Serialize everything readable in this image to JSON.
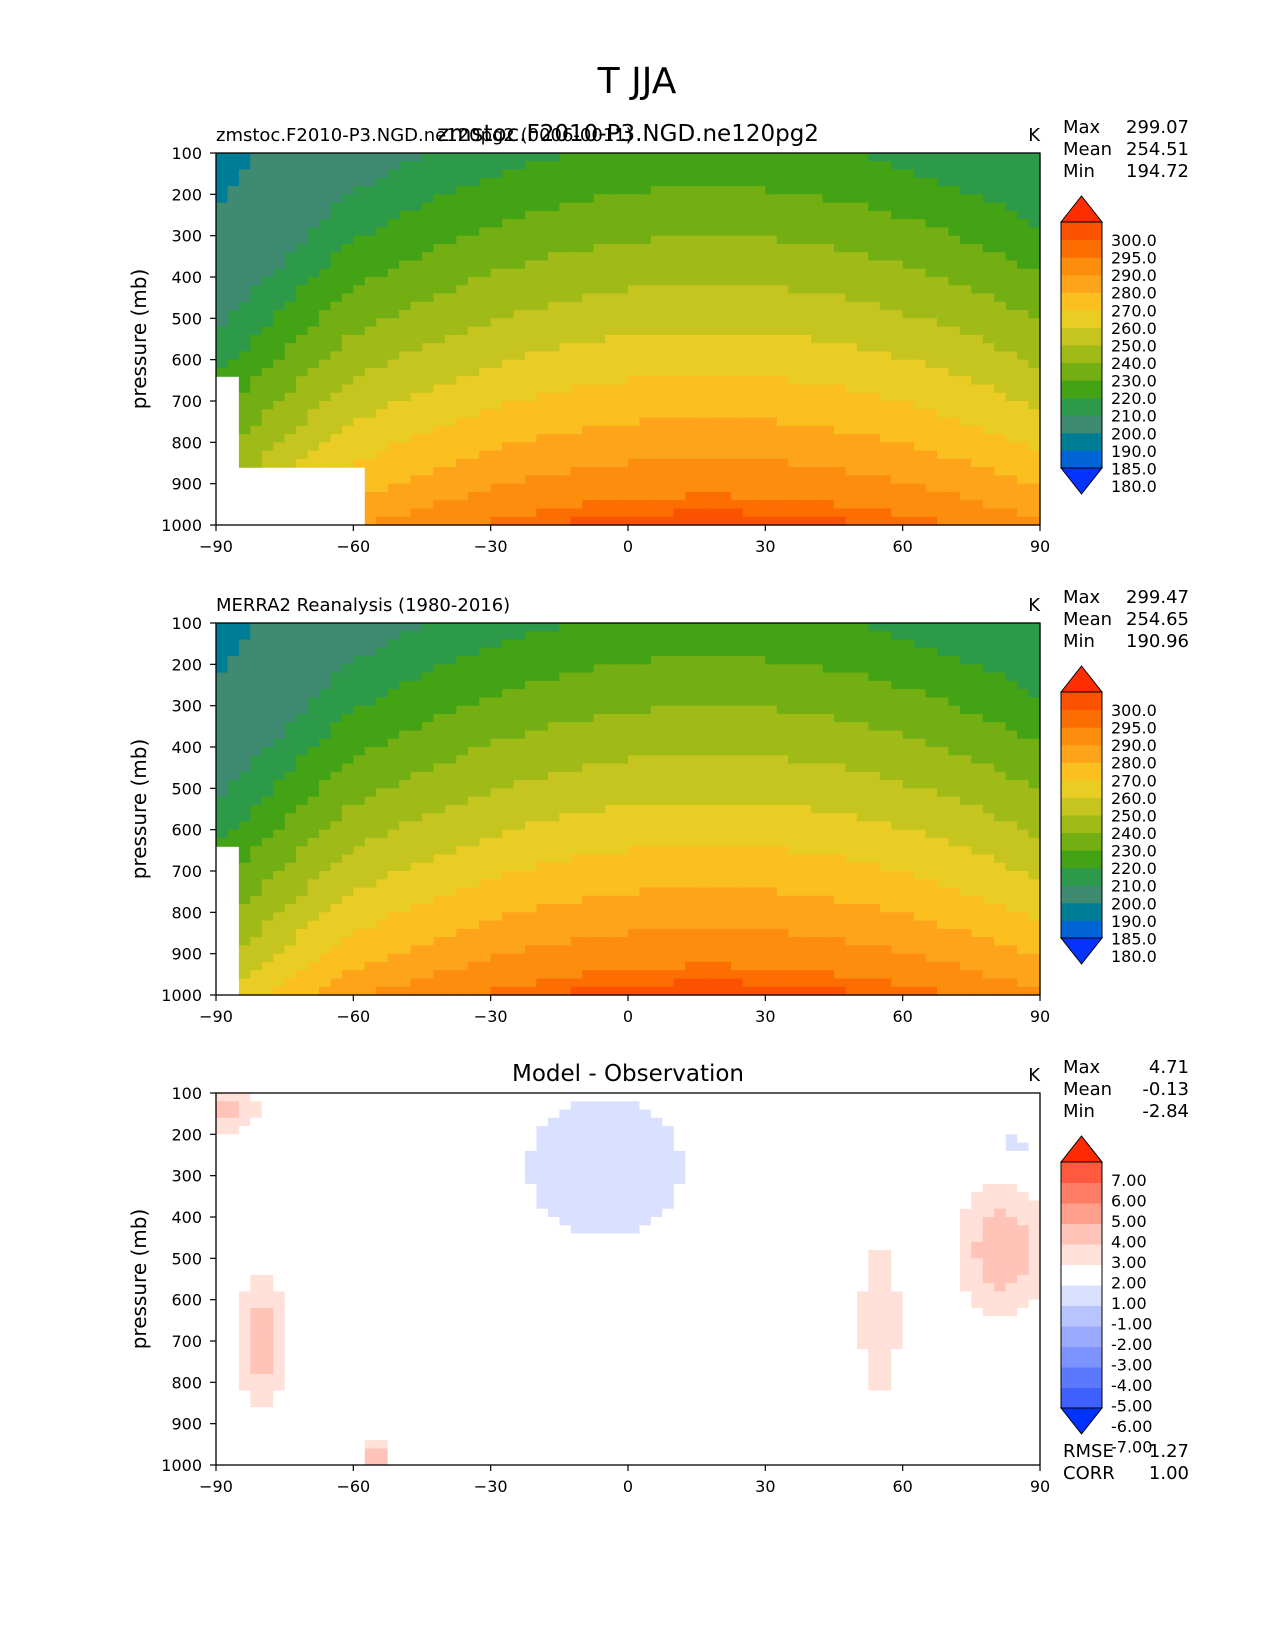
{
  "figure_title": "T JJA",
  "colors": {
    "temperature_levels": [
      "#0433ff",
      "#0064d6",
      "#007d96",
      "#3e8b72",
      "#2d9a4a",
      "#43a315",
      "#73ae12",
      "#a0bb18",
      "#c6c41e",
      "#e9cc24",
      "#fbbf20",
      "#fda41a",
      "#fc8d0d",
      "#fc6d02",
      "#fb5200",
      "#ff2d00"
    ],
    "difference_levels": [
      "#0032ff",
      "#3d60ff",
      "#5b79ff",
      "#7d93ff",
      "#9aaaff",
      "#b8c4ff",
      "#dae1ff",
      "#ffffff",
      "#ffe1da",
      "#ffc3b8",
      "#ff9f8c",
      "#ff7c66",
      "#ff5a3f",
      "#ff2a00"
    ]
  },
  "chart_data": [
    {
      "type": "heatmap",
      "panel_id": "model",
      "title": "zmstoc.F2010-P3.NGD.ne120pg2",
      "title_left": "zmstoc.F2010-P3.NGD.ne120pg2 (0006-0011)",
      "units": "K",
      "xlabel": "",
      "ylabel": "pressure (mb)",
      "xlim": [
        -90,
        90
      ],
      "ylim": [
        1000,
        100
      ],
      "xticks": [
        "−90",
        "−60",
        "−30",
        "0",
        "30",
        "60",
        "90"
      ],
      "yticks": [
        "100",
        "200",
        "300",
        "400",
        "500",
        "600",
        "700",
        "800",
        "900",
        "1000"
      ],
      "stats": [
        {
          "label": "Max",
          "value": "299.07"
        },
        {
          "label": "Mean",
          "value": "254.51"
        },
        {
          "label": "Min",
          "value": "194.72"
        }
      ],
      "colorbar_ticks": [
        "300.0",
        "295.0",
        "290.0",
        "280.0",
        "270.0",
        "260.0",
        "250.0",
        "240.0",
        "230.0",
        "220.0",
        "210.0",
        "200.0",
        "190.0",
        "185.0",
        "180.0"
      ]
    },
    {
      "type": "heatmap",
      "panel_id": "obs",
      "title": "",
      "title_left": "MERRA2 Reanalysis (1980-2016)",
      "units": "K",
      "xlabel": "",
      "ylabel": "pressure (mb)",
      "xlim": [
        -90,
        90
      ],
      "ylim": [
        1000,
        100
      ],
      "xticks": [
        "−90",
        "−60",
        "−30",
        "0",
        "30",
        "60",
        "90"
      ],
      "yticks": [
        "100",
        "200",
        "300",
        "400",
        "500",
        "600",
        "700",
        "800",
        "900",
        "1000"
      ],
      "stats": [
        {
          "label": "Max",
          "value": "299.47"
        },
        {
          "label": "Mean",
          "value": "254.65"
        },
        {
          "label": "Min",
          "value": "190.96"
        }
      ],
      "colorbar_ticks": [
        "300.0",
        "295.0",
        "290.0",
        "280.0",
        "270.0",
        "260.0",
        "250.0",
        "240.0",
        "230.0",
        "220.0",
        "210.0",
        "200.0",
        "190.0",
        "185.0",
        "180.0"
      ]
    },
    {
      "type": "heatmap",
      "panel_id": "diff",
      "title": "Model - Observation",
      "title_left": "",
      "units": "K",
      "xlabel": "",
      "ylabel": "pressure (mb)",
      "xlim": [
        -90,
        90
      ],
      "ylim": [
        1000,
        100
      ],
      "xticks": [
        "−90",
        "−60",
        "−30",
        "0",
        "30",
        "60",
        "90"
      ],
      "yticks": [
        "100",
        "200",
        "300",
        "400",
        "500",
        "600",
        "700",
        "800",
        "900",
        "1000"
      ],
      "stats": [
        {
          "label": "Max",
          "value": "4.71"
        },
        {
          "label": "Mean",
          "value": "-0.13"
        },
        {
          "label": "Min",
          "value": "-2.84"
        }
      ],
      "colorbar_ticks": [
        "7.00",
        "6.00",
        "5.00",
        "4.00",
        "3.00",
        "2.00",
        "1.00",
        "-1.00",
        "-2.00",
        "-3.00",
        "-4.00",
        "-5.00",
        "-6.00",
        "-7.00"
      ],
      "extra_stats": [
        {
          "label": "RMSE",
          "value": "1.27"
        },
        {
          "label": "CORR",
          "value": "1.00"
        }
      ]
    }
  ]
}
